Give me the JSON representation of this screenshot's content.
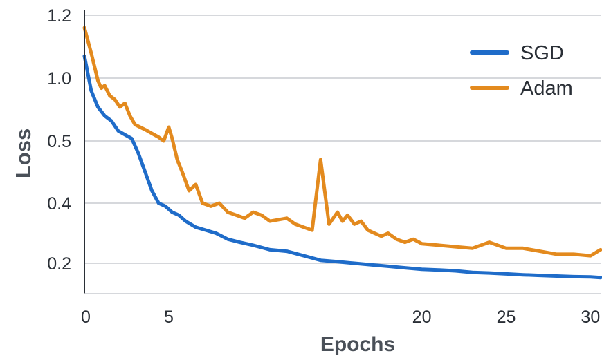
{
  "chart_data": {
    "type": "line",
    "title": "",
    "xlabel": "Epochs",
    "ylabel": "Loss",
    "xlim": [
      0,
      30.6
    ],
    "x_ticks": [
      {
        "value": 0,
        "label": "0"
      },
      {
        "value": 5,
        "label": "5"
      },
      {
        "value": 20,
        "label": "20"
      },
      {
        "value": 25,
        "label": "25"
      },
      {
        "value": 30,
        "label": "30"
      }
    ],
    "y_ticks": [
      {
        "value": 0.2,
        "label": "0.2"
      },
      {
        "value": 0.4,
        "label": "0.4"
      },
      {
        "value": 0.5,
        "label": "0.5"
      },
      {
        "value": 1.0,
        "label": "1.0"
      },
      {
        "value": 1.2,
        "label": "1.2"
      }
    ],
    "grid": true,
    "legend_position": "top-right",
    "series": [
      {
        "name": "SGD",
        "color": "#1f6cc9",
        "x": [
          0,
          0.4,
          0.8,
          1.2,
          1.6,
          2.0,
          2.4,
          2.8,
          3.2,
          3.6,
          4.0,
          4.4,
          4.8,
          5.2,
          5.6,
          6.0,
          6.6,
          7.2,
          7.8,
          8.5,
          9.2,
          10.0,
          11.0,
          12.0,
          13.0,
          14.0,
          15.0,
          16.0,
          17.0,
          18.0,
          19.0,
          20.0,
          21.0,
          22.0,
          23.0,
          24.0,
          25.0,
          26.0,
          27.0,
          28.0,
          29.0,
          30.0,
          30.6
        ],
        "values": [
          1.07,
          0.9,
          0.77,
          0.7,
          0.66,
          0.58,
          0.55,
          0.52,
          0.48,
          0.45,
          0.42,
          0.4,
          0.39,
          0.37,
          0.36,
          0.34,
          0.32,
          0.31,
          0.3,
          0.28,
          0.27,
          0.26,
          0.245,
          0.24,
          0.225,
          0.21,
          0.205,
          0.2,
          0.195,
          0.19,
          0.185,
          0.18,
          0.178,
          0.175,
          0.17,
          0.168,
          0.165,
          0.162,
          0.16,
          0.158,
          0.156,
          0.155,
          0.153
        ]
      },
      {
        "name": "Adam",
        "color": "#e38a1e",
        "x": [
          0,
          0.4,
          0.8,
          1.0,
          1.2,
          1.5,
          1.8,
          2.1,
          2.4,
          2.7,
          3.0,
          3.3,
          3.6,
          4.0,
          4.4,
          4.7,
          5.0,
          5.2,
          5.5,
          5.8,
          6.2,
          6.6,
          7.0,
          7.5,
          8.0,
          8.5,
          9.0,
          9.5,
          10.0,
          10.5,
          11.0,
          11.5,
          12.0,
          12.5,
          13.0,
          13.5,
          14.0,
          14.5,
          15.0,
          15.3,
          15.6,
          16.0,
          16.4,
          16.8,
          17.2,
          17.6,
          18.0,
          18.5,
          19.0,
          19.5,
          20.0,
          21.0,
          22.0,
          23.0,
          24.0,
          25.0,
          26.0,
          27.0,
          28.0,
          29.0,
          30.0,
          30.6
        ],
        "values": [
          1.16,
          1.08,
          0.98,
          0.92,
          0.94,
          0.86,
          0.83,
          0.77,
          0.8,
          0.7,
          0.63,
          0.61,
          0.59,
          0.56,
          0.53,
          0.5,
          0.61,
          0.52,
          0.47,
          0.45,
          0.42,
          0.43,
          0.4,
          0.39,
          0.4,
          0.37,
          0.36,
          0.35,
          0.37,
          0.36,
          0.34,
          0.345,
          0.35,
          0.33,
          0.32,
          0.31,
          0.47,
          0.33,
          0.37,
          0.34,
          0.36,
          0.33,
          0.34,
          0.31,
          0.3,
          0.29,
          0.3,
          0.28,
          0.27,
          0.28,
          0.265,
          0.26,
          0.255,
          0.25,
          0.27,
          0.25,
          0.25,
          0.24,
          0.23,
          0.23,
          0.225,
          0.245
        ]
      }
    ]
  }
}
